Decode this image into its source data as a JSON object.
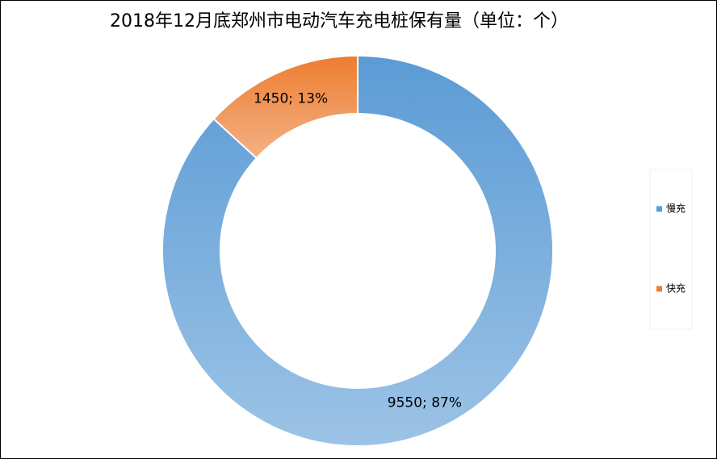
{
  "chart_data": {
    "type": "donut",
    "title": "2018年12月底郑州市电动汽车充电桩保有量（单位：个）",
    "categories": [
      "慢充",
      "快充"
    ],
    "values": [
      9550,
      1450
    ],
    "value_labels": [
      "9550; 87%",
      "1450; 13%"
    ],
    "colors": [
      "#5b9bd5",
      "#ed7d31"
    ],
    "legend": "right"
  }
}
